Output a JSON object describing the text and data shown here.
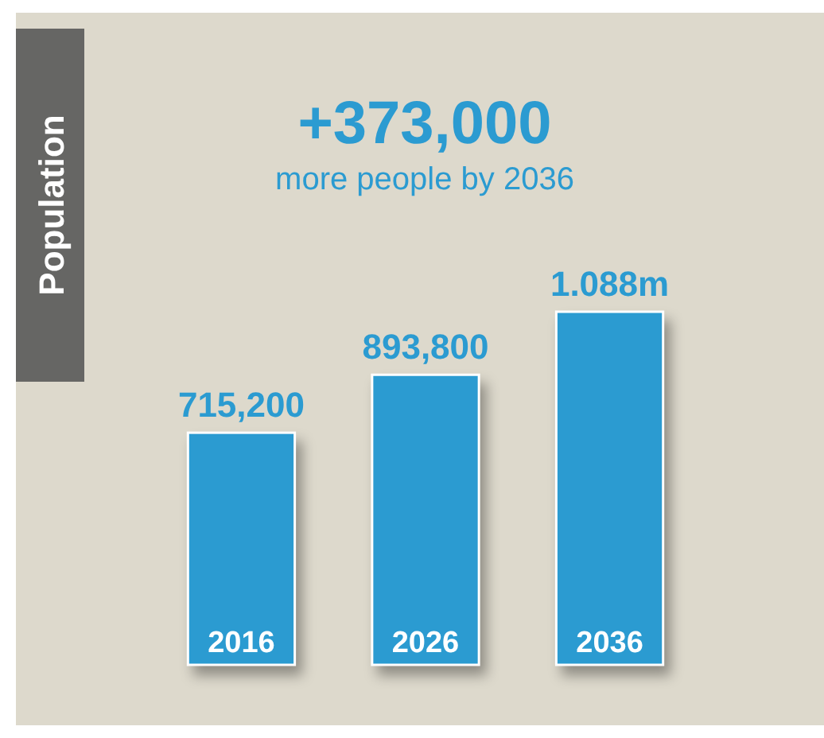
{
  "chart_data": {
    "type": "bar",
    "title": "+373,000",
    "subtitle": "more people by 2036",
    "ylabel": "Population",
    "categories": [
      "2016",
      "2026",
      "2036"
    ],
    "values": [
      715200,
      893800,
      1088000
    ],
    "value_labels": [
      "715,200",
      "893,800",
      "1.088m"
    ],
    "color": "#2b9bd1"
  }
}
